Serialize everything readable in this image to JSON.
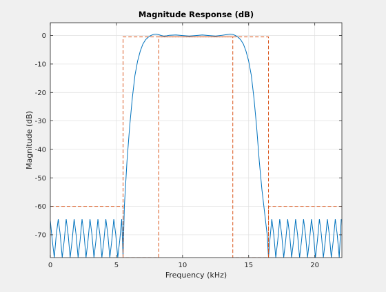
{
  "chart_data": {
    "type": "line",
    "title": "Magnitude Response (dB)",
    "xlabel": "Frequency (kHz)",
    "ylabel": "Magnitude (dB)",
    "xlim": [
      0,
      22.05
    ],
    "ylim": [
      -78,
      4.5
    ],
    "xticks": [
      0,
      5,
      10,
      15,
      20
    ],
    "yticks": [
      0,
      -10,
      -20,
      -30,
      -40,
      -50,
      -60,
      -70
    ],
    "grid": true,
    "series": [
      {
        "style": "solid",
        "color": "#0072bd",
        "description": "filter magnitude response",
        "x": [
          0.0,
          0.15,
          0.3,
          0.45,
          0.6,
          0.75,
          0.9,
          1.05,
          1.2,
          1.35,
          1.5,
          1.65,
          1.8,
          1.95,
          2.1,
          2.25,
          2.4,
          2.55,
          2.7,
          2.85,
          3.0,
          3.15,
          3.3,
          3.45,
          3.6,
          3.75,
          3.9,
          4.05,
          4.2,
          4.35,
          4.5,
          4.65,
          4.8,
          4.95,
          5.1,
          5.25,
          5.4,
          5.5,
          5.6,
          5.8,
          6.0,
          6.2,
          6.4,
          6.6,
          6.8,
          7.0,
          7.2,
          7.4,
          7.6,
          7.8,
          8.0,
          8.2,
          8.4,
          8.6,
          8.8,
          9.0,
          9.5,
          10.0,
          10.5,
          11.0,
          11.5,
          12.0,
          12.5,
          13.0,
          13.3,
          13.6,
          13.8,
          14.0,
          14.2,
          14.4,
          14.6,
          14.8,
          15.0,
          15.2,
          15.4,
          15.6,
          15.8,
          16.0,
          16.2,
          16.4,
          16.5,
          16.6,
          16.75,
          16.9,
          17.05,
          17.2,
          17.35,
          17.5,
          17.65,
          17.8,
          17.95,
          18.1,
          18.25,
          18.4,
          18.55,
          18.7,
          18.85,
          19.0,
          19.15,
          19.3,
          19.45,
          19.6,
          19.75,
          19.9,
          20.05,
          20.2,
          20.35,
          20.5,
          20.65,
          20.8,
          20.95,
          21.1,
          21.25,
          21.4,
          21.55,
          21.7,
          21.85,
          22.0
        ],
        "y": [
          -65,
          -72,
          -78,
          -70,
          -64.5,
          -70,
          -78,
          -72,
          -64.5,
          -70,
          -78,
          -72,
          -64.5,
          -70,
          -78,
          -72,
          -64.5,
          -70,
          -78,
          -72,
          -64.5,
          -70,
          -78,
          -72,
          -64.5,
          -70,
          -78,
          -72,
          -64.5,
          -70,
          -78,
          -72,
          -64.5,
          -70,
          -78,
          -72,
          -64.5,
          -78,
          -60,
          -44,
          -32,
          -22,
          -14,
          -9,
          -5.5,
          -3,
          -1.5,
          -0.6,
          0,
          0.4,
          0.5,
          0.3,
          0,
          -0.2,
          -0.1,
          0.1,
          0.2,
          0,
          -0.2,
          0,
          0.2,
          0,
          -0.2,
          0.1,
          0.3,
          0.5,
          0.4,
          0,
          -0.6,
          -1.5,
          -3,
          -5.5,
          -9,
          -14,
          -22,
          -32,
          -44,
          -54,
          -62,
          -70,
          -78,
          -72,
          -64.5,
          -70,
          -78,
          -72,
          -64.5,
          -70,
          -78,
          -72,
          -64.5,
          -70,
          -78,
          -72,
          -64.5,
          -70,
          -78,
          -72,
          -64.5,
          -70,
          -78,
          -72,
          -64.5,
          -70,
          -78,
          -72,
          -64.5,
          -70,
          -78,
          -72,
          -64.5,
          -70,
          -78,
          -72,
          -64.5,
          -70,
          -78,
          -64.5
        ]
      },
      {
        "style": "dashed",
        "color": "#d95319",
        "description": "lower specification mask",
        "x": [
          0,
          5.5,
          5.5,
          8.2,
          8.2,
          13.8,
          13.8,
          16.5,
          16.5,
          22.05
        ],
        "y": [
          -60,
          -60,
          -78,
          -78,
          -0.5,
          -0.5,
          -78,
          -78,
          -60,
          -60
        ]
      },
      {
        "style": "dashed",
        "color": "#d95319",
        "description": "upper specification mask",
        "x": [
          5.5,
          5.5,
          16.5,
          16.5
        ],
        "y": [
          -78,
          -0.5,
          -0.5,
          -78
        ]
      }
    ]
  }
}
